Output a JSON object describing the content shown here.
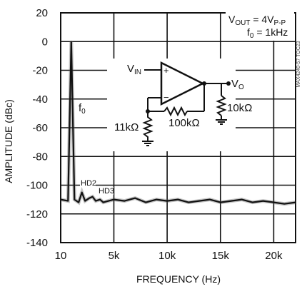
{
  "chart_data": {
    "type": "line",
    "title": "",
    "xlabel": "FREQUENCY (Hz)",
    "ylabel": "AMPLITUDE (dBc)",
    "x_tick_labels": [
      "10",
      "5k",
      "10k",
      "15k",
      "20k"
    ],
    "x_ticks": [
      10,
      5000,
      10000,
      15000,
      20000
    ],
    "xlim": [
      10,
      22050
    ],
    "y_ticks": [
      20,
      0,
      -20,
      -40,
      -60,
      -80,
      -100,
      -120,
      -140
    ],
    "ylim": [
      -140,
      20
    ],
    "grid": true,
    "series": [
      {
        "x": [
          10,
          700,
          1000,
          1300,
          1700,
          2000,
          2300,
          2700,
          3000,
          3300,
          3700,
          4000,
          5000,
          6000,
          7000,
          8000,
          9000,
          10000,
          11000,
          12000,
          13000,
          14000,
          15000,
          16000,
          17000,
          18000,
          19000,
          20000,
          21000,
          22050
        ],
        "values": [
          -110,
          -111,
          0,
          -110,
          -112,
          -105,
          -111,
          -109,
          -108,
          -111,
          -110,
          -112,
          -110,
          -111,
          -109,
          -112,
          -110,
          -111,
          -110,
          -112,
          -111,
          -110,
          -112,
          -111,
          -110,
          -112,
          -111,
          -112,
          -113,
          -112
        ]
      }
    ],
    "annotations": {
      "fundamental": "f",
      "fundamental_sub": "0",
      "hd2": "HD2",
      "hd3": "HD3",
      "condition_vout": "V",
      "condition_vout_sub": "OUT",
      "condition_vout_rest": " = 4V",
      "condition_vout_sub2": "P-P",
      "condition_f0": "f",
      "condition_f0_sub": "0",
      "condition_f0_rest": " = 1kHz",
      "code": "MAX4240-57 TOC23"
    },
    "circuit": {
      "vin": "V",
      "vin_sub": "IN",
      "vo": "V",
      "vo_sub": "O",
      "r_ground": "11kΩ",
      "r_feedback": "100kΩ",
      "r_load": "10kΩ",
      "plus": "+",
      "minus": "−"
    }
  }
}
